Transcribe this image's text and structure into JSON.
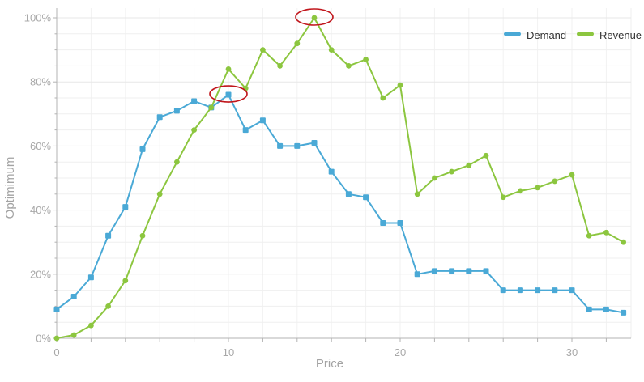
{
  "chart_data": {
    "type": "line",
    "title": "",
    "xlabel": "Price",
    "ylabel": "Optimimum",
    "xlim": [
      0,
      33.5
    ],
    "ylim": [
      0,
      100
    ],
    "grid": true,
    "legend_position": "top-right",
    "x_ticks": [
      {
        "value": 0,
        "label": "0"
      },
      {
        "value": 10,
        "label": "10"
      },
      {
        "value": 20,
        "label": "20"
      },
      {
        "value": 30,
        "label": "30"
      }
    ],
    "y_ticks": [
      {
        "value": 0,
        "label": "0%"
      },
      {
        "value": 20,
        "label": "20%"
      },
      {
        "value": 40,
        "label": "40%"
      },
      {
        "value": 60,
        "label": "60%"
      },
      {
        "value": 80,
        "label": "80%"
      },
      {
        "value": 100,
        "label": "100%"
      }
    ],
    "x_minor_step": 2,
    "y_minor_step": 5,
    "x": [
      0,
      1,
      2,
      3,
      4,
      5,
      6,
      7,
      8,
      9,
      10,
      11,
      12,
      13,
      14,
      15,
      16,
      17,
      18,
      19,
      20,
      21,
      22,
      23,
      24,
      25,
      26,
      27,
      28,
      29,
      30,
      31,
      32,
      33
    ],
    "series": [
      {
        "name": "Demand",
        "color": "#4aa9d6",
        "marker": "square",
        "values": [
          9,
          13,
          19,
          32,
          41,
          59,
          69,
          71,
          74,
          72,
          76,
          65,
          68,
          60,
          60,
          61,
          52,
          45,
          44,
          36,
          36,
          20,
          21,
          21,
          21,
          21,
          15,
          15,
          15,
          15,
          15,
          9,
          9,
          8
        ]
      },
      {
        "name": "Revenue",
        "color": "#8cc63f",
        "marker": "circle",
        "values": [
          0,
          1,
          4,
          10,
          18,
          32,
          45,
          55,
          65,
          72,
          84,
          78,
          90,
          85,
          92,
          100,
          90,
          85,
          87,
          75,
          79,
          45,
          50,
          52,
          54,
          57,
          44,
          46,
          47,
          49,
          51,
          32,
          33,
          30
        ]
      }
    ],
    "annotations": [
      {
        "type": "ellipse",
        "label": "circled-demand-point",
        "x": 10,
        "y": 76,
        "color": "#c1161c"
      },
      {
        "type": "ellipse",
        "label": "circled-revenue-peak",
        "x": 15,
        "y": 100,
        "color": "#c1161c"
      }
    ]
  },
  "colors": {
    "background": "#ffffff",
    "grid_minor": "#efefef",
    "grid_major": "#e7e7e7",
    "grid_vertical": "#f2f2f2",
    "axis": "#b3b3b3",
    "tick_label": "#a8a8a8",
    "axis_title": "#a3a3a3",
    "legend_text": "#333333",
    "annotation": "#c1161c"
  }
}
